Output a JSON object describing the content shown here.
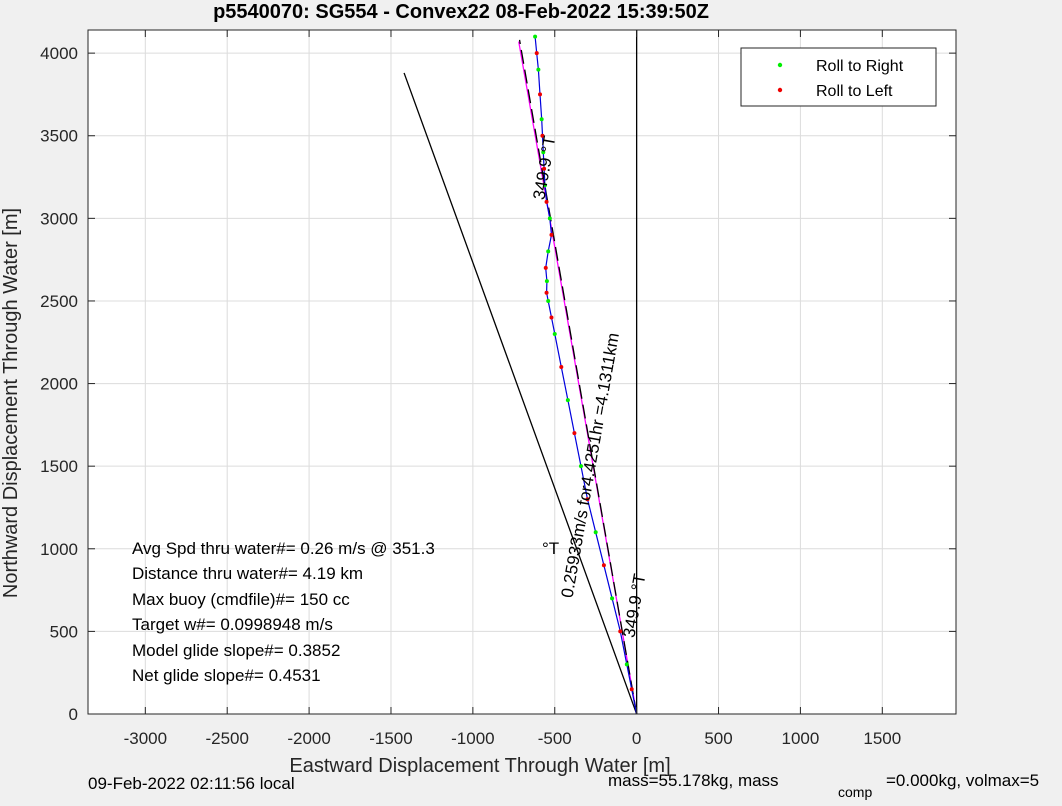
{
  "chart_data": {
    "type": "line",
    "title": "p5540070: SG554 - Convex22 08-Feb-2022 15:39:50Z",
    "xlabel": "Eastward Displacement Through Water [m]",
    "ylabel": "Northward Displacement Through Water [m]",
    "xlim": [
      -3350,
      1950
    ],
    "ylim": [
      0,
      4140
    ],
    "xticks": [
      -3000,
      -2500,
      -2000,
      -1500,
      -1000,
      -500,
      0,
      500,
      1000,
      1500
    ],
    "yticks": [
      0,
      500,
      1000,
      1500,
      2000,
      2500,
      3000,
      3500,
      4000
    ],
    "grid": true,
    "legend_position": "top-right",
    "legend": [
      {
        "label": "Roll to Right",
        "color": "#00ee00"
      },
      {
        "label": "Roll to Left",
        "color": "#ee0000"
      }
    ],
    "series": [
      {
        "name": "track",
        "color": "#0000dd",
        "x": [
          0,
          -30,
          -60,
          -100,
          -150,
          -200,
          -250,
          -300,
          -340,
          -380,
          -420,
          -460,
          -500,
          -520,
          -540,
          -550,
          -548,
          -555,
          -540,
          -520,
          -530,
          -550,
          -560,
          -565,
          -570,
          -575,
          -580,
          -590,
          -600,
          -610,
          -620
        ],
        "y": [
          0,
          150,
          300,
          500,
          700,
          900,
          1100,
          1300,
          1500,
          1700,
          1900,
          2100,
          2300,
          2400,
          2500,
          2550,
          2620,
          2700,
          2800,
          2900,
          3000,
          3100,
          3200,
          3300,
          3400,
          3500,
          3600,
          3750,
          3900,
          4000,
          4100
        ]
      }
    ],
    "reference_lines": [
      {
        "name": "direction-vector",
        "color": "#ff00ff",
        "x": [
          0,
          -720
        ],
        "y": [
          0,
          4070
        ]
      },
      {
        "name": "current-heading-line",
        "color": "#000000",
        "dash": true,
        "x": [
          0,
          -715
        ],
        "y": [
          0,
          4080
        ]
      },
      {
        "name": "dive-heading-line",
        "color": "#000000",
        "x": [
          0,
          -1420
        ],
        "y": [
          0,
          3880
        ]
      },
      {
        "name": "north-reference-line",
        "color": "#000000",
        "x": [
          0,
          0
        ],
        "y": [
          0,
          4140
        ]
      }
    ],
    "annotations": [
      {
        "text": "349.9 °T",
        "x": -530,
        "y": 3300,
        "rotation": -80
      },
      {
        "text": "0.25933m/s for4.4251hr =4.1311km",
        "x": -250,
        "y": 1500,
        "rotation": -80
      },
      {
        "text": "349.9 °T",
        "x": 20,
        "y": 650,
        "rotation": -80
      }
    ],
    "stats_text": [
      "Avg Spd thru water#=  0.26 m/s @ 351.3",
      "Distance thru water#=  4.19 km",
      "Max buoy (cmdfile)#= 150 cc",
      "Target w#= 0.0998948 m/s",
      "Model glide slope#= 0.3852",
      "Net glide slope#= 0.4531"
    ],
    "stats_unit": "°T"
  },
  "footer": {
    "local_time": "09-Feb-2022 02:11:56 local",
    "mass_text": "mass=55.178kg, mass",
    "mass_subscript": "comp",
    "mass_tail": "=0.000kg, volmax=5"
  }
}
